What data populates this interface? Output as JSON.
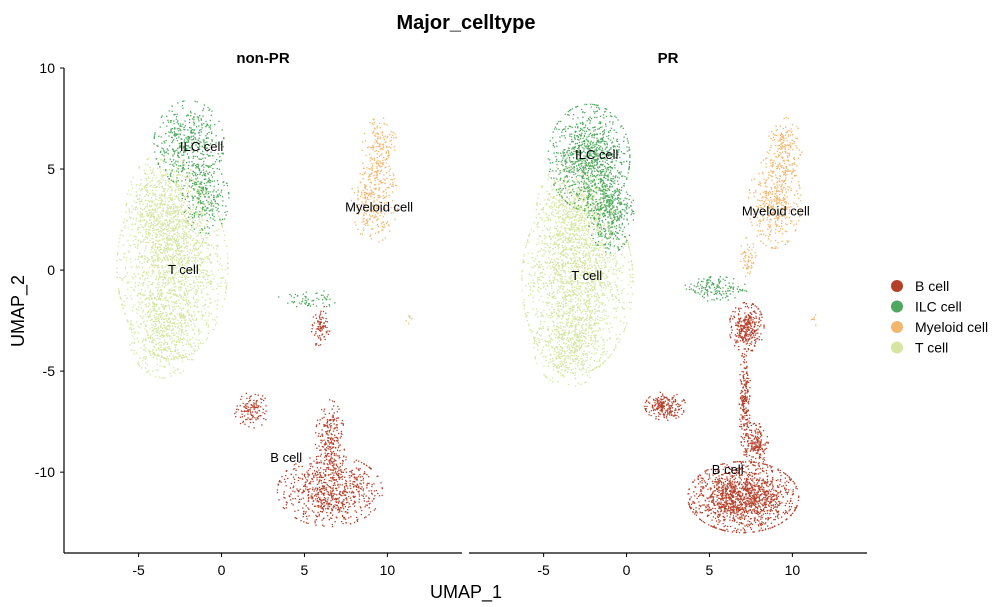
{
  "chart_data": {
    "type": "scatter",
    "title": "Major_celltype",
    "xlabel": "UMAP_1",
    "ylabel": "UMAP_2",
    "xlim": [
      -9.5,
      14.5
    ],
    "ylim": [
      -14,
      10
    ],
    "x_ticks": [
      -5,
      0,
      5,
      10
    ],
    "y_ticks": [
      10,
      5,
      0,
      -5,
      -10
    ],
    "legend_position": "right",
    "legend": [
      {
        "label": "B cell",
        "color": "#B5402A"
      },
      {
        "label": "ILC cell",
        "color": "#4FA85E"
      },
      {
        "label": "Myeloid cell",
        "color": "#F2B66C"
      },
      {
        "label": "T cell",
        "color": "#D4E6A0"
      }
    ],
    "panels": [
      {
        "facet": "non-PR",
        "cluster_labels": [
          {
            "text": "ILC cell",
            "x": -1.2,
            "y": 6.1
          },
          {
            "text": "T cell",
            "x": -2.3,
            "y": 0.0
          },
          {
            "text": "Myeloid cell",
            "x": 9.5,
            "y": 3.1
          },
          {
            "text": "B cell",
            "x": 3.9,
            "y": -9.3
          }
        ],
        "clusters": [
          {
            "type": "T cell",
            "n": 2600,
            "parts": [
              {
                "x": -3.0,
                "y": 0.2,
                "sx": 1.9,
                "sy": 2.6
              },
              {
                "x": -3.5,
                "y": 3.0,
                "sx": 1.3,
                "sy": 1.6
              },
              {
                "x": -3.5,
                "y": -3.2,
                "sx": 1.2,
                "sy": 1.2
              }
            ]
          },
          {
            "type": "ILC cell",
            "n": 700,
            "parts": [
              {
                "x": -2.0,
                "y": 6.3,
                "sx": 1.2,
                "sy": 1.2
              },
              {
                "x": -1.0,
                "y": 3.6,
                "sx": 0.8,
                "sy": 1.0
              }
            ]
          },
          {
            "type": "Myeloid cell",
            "n": 450,
            "parts": [
              {
                "x": 9.2,
                "y": 3.5,
                "sx": 0.8,
                "sy": 1.2
              },
              {
                "x": 9.5,
                "y": 6.0,
                "sx": 0.6,
                "sy": 0.9
              },
              {
                "x": 11.3,
                "y": -2.4,
                "sx": 0.12,
                "sy": 0.18
              }
            ]
          },
          {
            "type": "B cell",
            "n": 1200,
            "parts": [
              {
                "x": 6.5,
                "y": -10.9,
                "sx": 1.8,
                "sy": 1.0
              },
              {
                "x": 1.8,
                "y": -6.9,
                "sx": 0.6,
                "sy": 0.5
              },
              {
                "x": 6.5,
                "y": -8.5,
                "sx": 0.5,
                "sy": 1.2
              },
              {
                "x": 6.0,
                "y": -2.8,
                "sx": 0.35,
                "sy": 0.6
              }
            ]
          },
          {
            "type": "ILC cell",
            "n": 60,
            "parts": [
              {
                "x": 5.3,
                "y": -1.4,
                "sx": 1.1,
                "sy": 0.25
              }
            ]
          }
        ]
      },
      {
        "facet": "PR",
        "cluster_labels": [
          {
            "text": "ILC cell",
            "x": -1.8,
            "y": 5.7
          },
          {
            "text": "T cell",
            "x": -2.4,
            "y": -0.3
          },
          {
            "text": "Myeloid cell",
            "x": 9.0,
            "y": 2.9
          },
          {
            "text": "B cell",
            "x": 6.1,
            "y": -9.9
          }
        ],
        "clusters": [
          {
            "type": "T cell",
            "n": 2600,
            "parts": [
              {
                "x": -3.0,
                "y": -0.5,
                "sx": 1.9,
                "sy": 2.6
              },
              {
                "x": -3.2,
                "y": 2.8,
                "sx": 1.3,
                "sy": 1.5
              },
              {
                "x": -3.5,
                "y": -3.8,
                "sx": 1.2,
                "sy": 1.1
              }
            ]
          },
          {
            "type": "ILC cell",
            "n": 1400,
            "parts": [
              {
                "x": -2.3,
                "y": 5.6,
                "sx": 1.4,
                "sy": 1.5
              },
              {
                "x": -1.0,
                "y": 3.0,
                "sx": 0.8,
                "sy": 1.2
              }
            ]
          },
          {
            "type": "Myeloid cell",
            "n": 650,
            "parts": [
              {
                "x": 8.9,
                "y": 3.4,
                "sx": 0.9,
                "sy": 1.3
              },
              {
                "x": 9.5,
                "y": 6.0,
                "sx": 0.6,
                "sy": 0.9
              },
              {
                "x": 7.3,
                "y": 0.6,
                "sx": 0.3,
                "sy": 0.6
              },
              {
                "x": 11.3,
                "y": -2.4,
                "sx": 0.12,
                "sy": 0.18
              }
            ]
          },
          {
            "type": "B cell",
            "n": 2400,
            "parts": [
              {
                "x": 7.0,
                "y": -11.2,
                "sx": 1.9,
                "sy": 1.0
              },
              {
                "x": 7.2,
                "y": -2.8,
                "sx": 0.6,
                "sy": 0.7
              },
              {
                "x": 2.3,
                "y": -6.7,
                "sx": 0.7,
                "sy": 0.4
              },
              {
                "x": 7.1,
                "y": -6.5,
                "sx": 0.2,
                "sy": 1.5
              },
              {
                "x": 7.8,
                "y": -8.6,
                "sx": 0.4,
                "sy": 0.6
              }
            ]
          },
          {
            "type": "ILC cell",
            "n": 150,
            "parts": [
              {
                "x": 5.3,
                "y": -0.9,
                "sx": 1.1,
                "sy": 0.35
              }
            ]
          }
        ]
      }
    ]
  }
}
